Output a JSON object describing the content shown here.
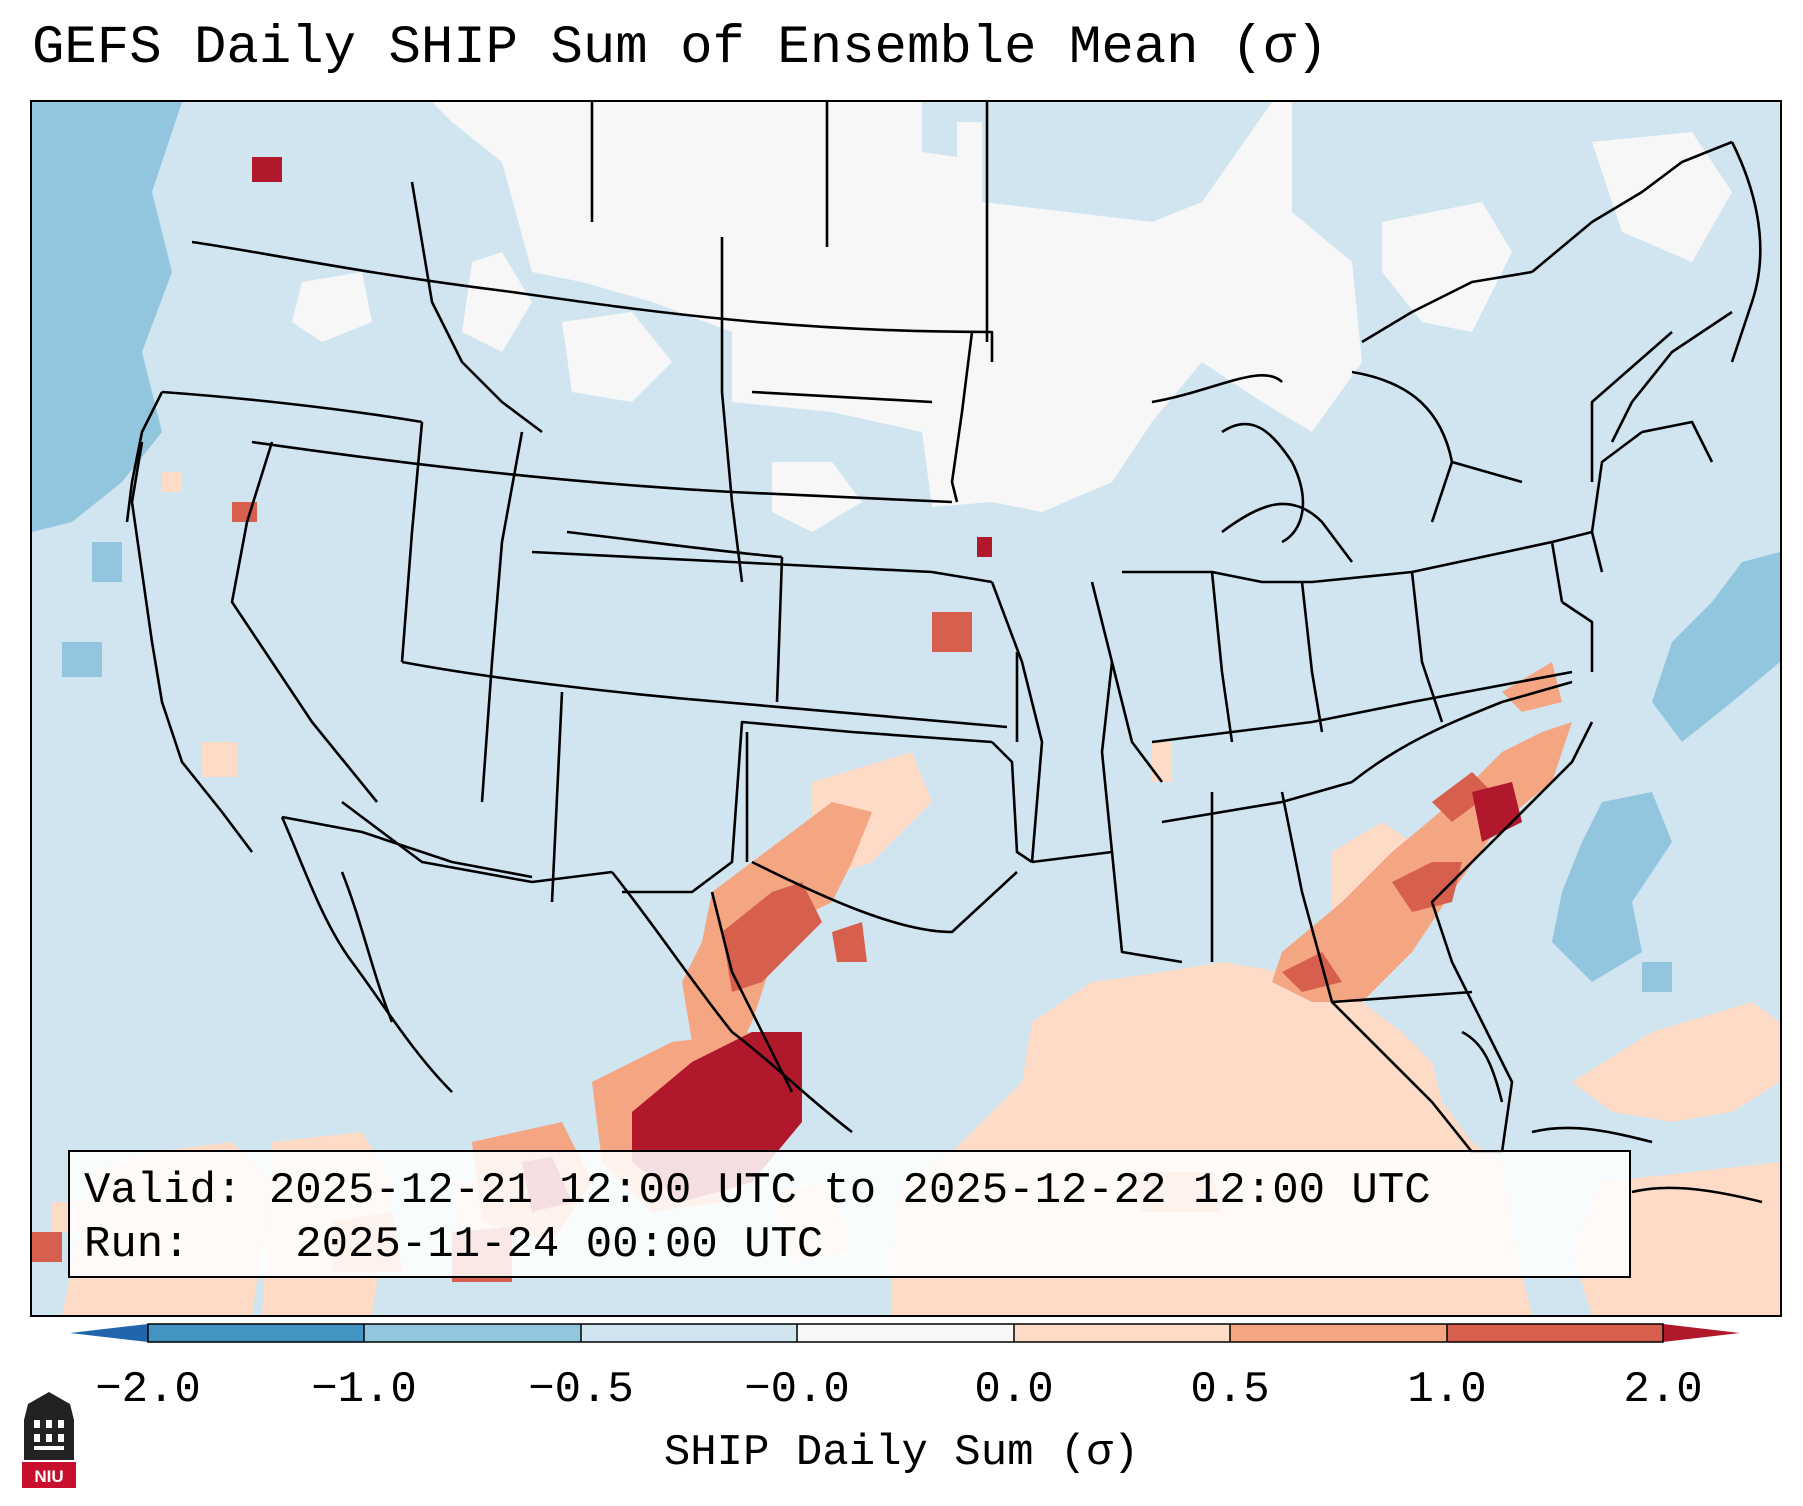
{
  "title": "GEFS Daily SHIP Sum of Ensemble Mean (σ)",
  "info": {
    "valid_label": "Valid:",
    "valid_value": "2025-12-21 12:00 UTC to 2025-12-22 12:00 UTC",
    "run_label": "Run:",
    "run_value": "2025-11-24 00:00 UTC"
  },
  "colorbar": {
    "label": "SHIP Daily Sum (σ)",
    "ticks": [
      "−2.0",
      "−1.0",
      "−0.5",
      "−0.0",
      "0.0",
      "0.5",
      "1.0",
      "2.0"
    ],
    "bin_colors": [
      "#4393c3",
      "#92c5de",
      "#d1e5f0",
      "#f7f7f7",
      "#fddbc7",
      "#f4a582",
      "#d6604d"
    ],
    "under_color": "#2166ac",
    "over_color": "#b2182b"
  },
  "logo": {
    "text": "NIU",
    "colors": {
      "shield": "#222222",
      "banner": "#c8102e"
    }
  }
}
